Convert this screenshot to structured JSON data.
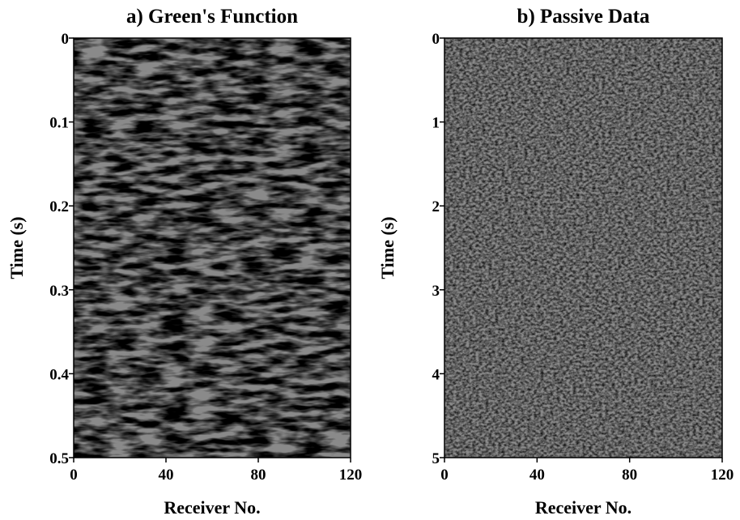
{
  "chart_data": [
    {
      "type": "image",
      "title": "a) Green's Function",
      "x_label": "Receiver No.",
      "y_label": "Time (s)",
      "xlim": [
        0,
        120
      ],
      "xticks": [
        0,
        40,
        80,
        120
      ],
      "ylim": [
        0,
        0.5
      ],
      "yticks": [
        0,
        0.1,
        0.2,
        0.3,
        0.4,
        0.5
      ],
      "y_inverted": true
    },
    {
      "type": "image",
      "title": "b) Passive Data",
      "x_label": "Receiver No.",
      "y_label": "Time (s)",
      "xlim": [
        0,
        120
      ],
      "xticks": [
        0,
        40,
        80,
        120
      ],
      "ylim": [
        0,
        5
      ],
      "yticks": [
        0,
        1,
        2,
        3,
        4,
        5
      ],
      "y_inverted": true
    }
  ]
}
